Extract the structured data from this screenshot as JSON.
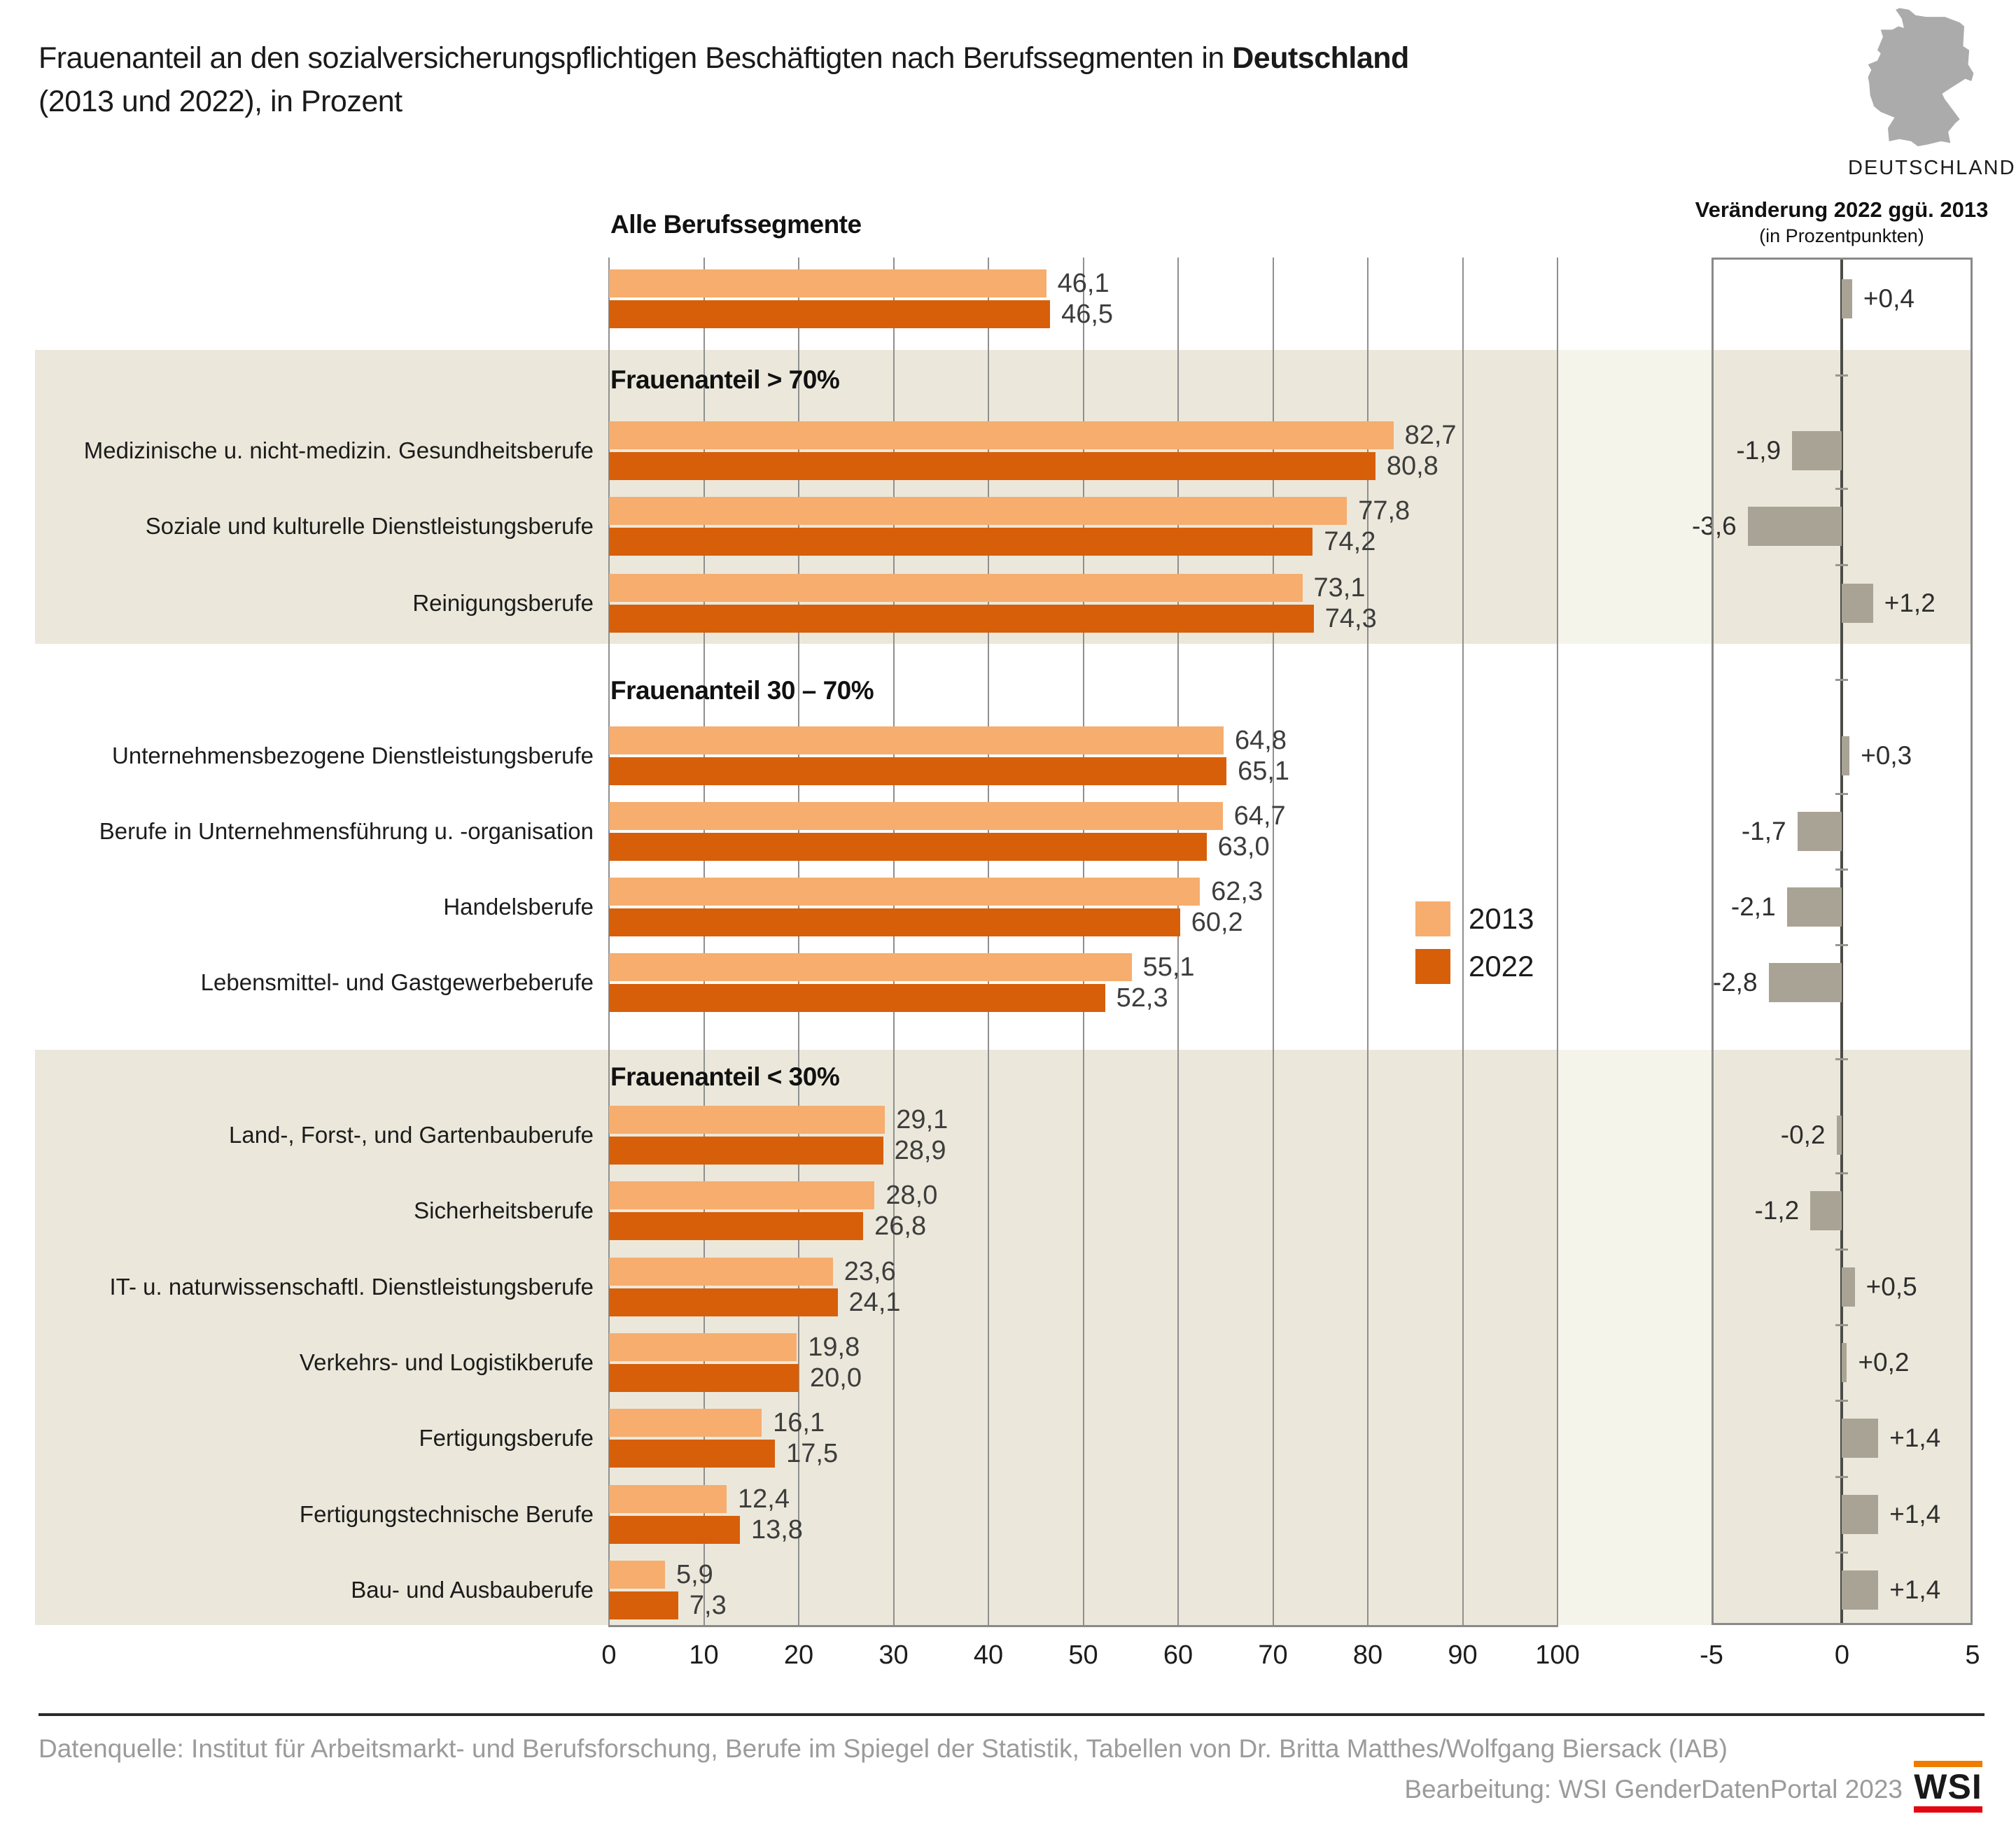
{
  "title": {
    "line1_prefix": "Frauenanteil an den sozialversicherungspflichtigen Beschäftigten nach Berufssegmenten in ",
    "line1_bold": "Deutschland",
    "line2": "(2013 und 2022), in Prozent"
  },
  "map": {
    "label": "DEUTSCHLAND"
  },
  "change_panel": {
    "title": "Veränderung 2022 ggü. 2013",
    "subtitle": "(in Prozentpunkten)"
  },
  "legend": [
    {
      "label": "2013",
      "color": "#F6AD6E"
    },
    {
      "label": "2022",
      "color": "#D75F0A"
    }
  ],
  "colors": {
    "bar_2013": "#F6AD6E",
    "bar_2022": "#D75F0A",
    "change_bar": "#A8A394",
    "band": "#EBE8DB",
    "band_light": "#F5F4EA",
    "grid": "#8F8F8F",
    "zero_line": "#4B4B47",
    "panel_border": "#8A8A8A",
    "axis_tick_mark": "#9A978B",
    "map": "#ABABAB",
    "logo_orange": "#EF7C00",
    "logo_red": "#E30613",
    "value_text": "#3D3D3D",
    "label_text": "#1C1C1C"
  },
  "chart_data": {
    "type": "bar",
    "orientation": "horizontal",
    "unit": "Prozent",
    "xlim": [
      0,
      100
    ],
    "xticks": [
      0,
      10,
      20,
      30,
      40,
      50,
      60,
      70,
      80,
      90,
      100
    ],
    "series_names": [
      "2013",
      "2022"
    ],
    "grid": true,
    "legend_position": "middle-right",
    "change_axis": {
      "title": "Veränderung 2022 ggü. 2013",
      "unit": "Prozentpunkte",
      "xlim": [
        -5,
        5
      ],
      "xticks": [
        -5,
        0,
        5
      ]
    },
    "sections": [
      {
        "header": "Alle Berufssegmente",
        "band": false,
        "rows": [
          {
            "label": "",
            "v2013": 46.1,
            "v2022": 46.5,
            "change": 0.4
          }
        ]
      },
      {
        "header": "Frauenanteil > 70%",
        "band": true,
        "rows": [
          {
            "label": "Medizinische u. nicht-medizin. Gesundheitsberufe",
            "v2013": 82.7,
            "v2022": 80.8,
            "change": -1.9
          },
          {
            "label": "Soziale und kulturelle Dienstleistungsberufe",
            "v2013": 77.8,
            "v2022": 74.2,
            "change": -3.6
          },
          {
            "label": "Reinigungsberufe",
            "v2013": 73.1,
            "v2022": 74.3,
            "change": 1.2
          }
        ]
      },
      {
        "header": "Frauenanteil 30 – 70%",
        "band": false,
        "rows": [
          {
            "label": "Unternehmensbezogene Dienstleistungsberufe",
            "v2013": 64.8,
            "v2022": 65.1,
            "change": 0.3
          },
          {
            "label": "Berufe in Unternehmensführung u. -organisation",
            "v2013": 64.7,
            "v2022": 63.0,
            "change": -1.7
          },
          {
            "label": "Handelsberufe",
            "v2013": 62.3,
            "v2022": 60.2,
            "change": -2.1
          },
          {
            "label": "Lebensmittel- und Gastgewerbeberufe",
            "v2013": 55.1,
            "v2022": 52.3,
            "change": -2.8
          }
        ]
      },
      {
        "header": "Frauenanteil < 30%",
        "band": true,
        "rows": [
          {
            "label": "Land-, Forst-, und Gartenbauberufe",
            "v2013": 29.1,
            "v2022": 28.9,
            "change": -0.2
          },
          {
            "label": "Sicherheitsberufe",
            "v2013": 28.0,
            "v2022": 26.8,
            "change": -1.2
          },
          {
            "label": "IT- u. naturwissenschaftl. Dienstleistungsberufe",
            "v2013": 23.6,
            "v2022": 24.1,
            "change": 0.5
          },
          {
            "label": "Verkehrs- und Logistikberufe",
            "v2013": 19.8,
            "v2022": 20.0,
            "change": 0.2
          },
          {
            "label": "Fertigungsberufe",
            "v2013": 16.1,
            "v2022": 17.5,
            "change": 1.4
          },
          {
            "label": "Fertigungstechnische Berufe",
            "v2013": 12.4,
            "v2022": 13.8,
            "change": 1.4
          },
          {
            "label": "Bau- und Ausbauberufe",
            "v2013": 5.9,
            "v2022": 7.3,
            "change": 1.4
          }
        ]
      }
    ]
  },
  "footer": {
    "source": "Datenquelle: Institut für Arbeitsmarkt- und Berufsforschung, Berufe im Spiegel der Statistik, Tabellen von Dr. Britta Matthes/Wolfgang Biersack (IAB)",
    "credit": "Bearbeitung: WSI GenderDatenPortal 2023",
    "logo_text": "WSI"
  }
}
